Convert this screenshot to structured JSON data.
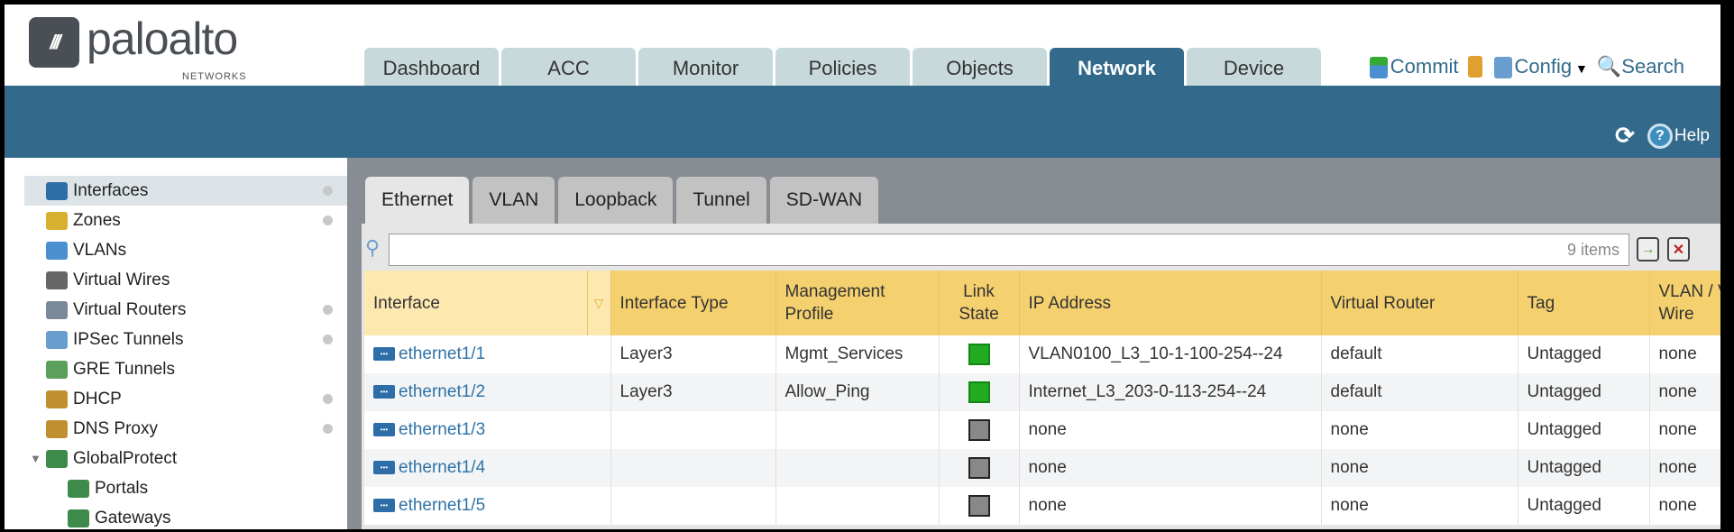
{
  "brand": {
    "logo_text": "paloalto",
    "logo_sub": "NETWORKS"
  },
  "main_tabs": [
    {
      "label": "Dashboard"
    },
    {
      "label": "ACC"
    },
    {
      "label": "Monitor"
    },
    {
      "label": "Policies"
    },
    {
      "label": "Objects"
    },
    {
      "label": "Network",
      "active": true
    },
    {
      "label": "Device"
    }
  ],
  "toolbar": {
    "commit": "Commit",
    "config": "Config",
    "search": "Search",
    "help": "Help"
  },
  "sidebar": {
    "items": [
      {
        "label": "Interfaces",
        "dot": true,
        "selected": true
      },
      {
        "label": "Zones",
        "dot": true
      },
      {
        "label": "VLANs"
      },
      {
        "label": "Virtual Wires"
      },
      {
        "label": "Virtual Routers",
        "dot": true
      },
      {
        "label": "IPSec Tunnels",
        "dot": true
      },
      {
        "label": "GRE Tunnels"
      },
      {
        "label": "DHCP",
        "dot": true
      },
      {
        "label": "DNS Proxy",
        "dot": true
      },
      {
        "label": "GlobalProtect",
        "expanded": true
      },
      {
        "label": "Portals",
        "child": true
      },
      {
        "label": "Gateways",
        "child": true
      }
    ]
  },
  "sub_tabs": [
    {
      "label": "Ethernet",
      "active": true
    },
    {
      "label": "VLAN"
    },
    {
      "label": "Loopback"
    },
    {
      "label": "Tunnel"
    },
    {
      "label": "SD-WAN"
    }
  ],
  "search": {
    "value": "",
    "count": "9 items"
  },
  "table": {
    "columns": [
      "Interface",
      "Interface Type",
      "Management Profile",
      "Link State",
      "IP Address",
      "Virtual Router",
      "Tag",
      "VLAN / Virtual-Wire"
    ],
    "rows": [
      {
        "interface": "ethernet1/1",
        "type": "Layer3",
        "profile": "Mgmt_Services",
        "link": "up",
        "ip": "VLAN0100_L3_10-1-100-254--24",
        "vr": "default",
        "tag": "Untagged",
        "vlan": "none"
      },
      {
        "interface": "ethernet1/2",
        "type": "Layer3",
        "profile": "Allow_Ping",
        "link": "up",
        "ip": "Internet_L3_203-0-113-254--24",
        "vr": "default",
        "tag": "Untagged",
        "vlan": "none"
      },
      {
        "interface": "ethernet1/3",
        "type": "",
        "profile": "",
        "link": "down",
        "ip": "none",
        "vr": "none",
        "tag": "Untagged",
        "vlan": "none"
      },
      {
        "interface": "ethernet1/4",
        "type": "",
        "profile": "",
        "link": "down",
        "ip": "none",
        "vr": "none",
        "tag": "Untagged",
        "vlan": "none"
      },
      {
        "interface": "ethernet1/5",
        "type": "",
        "profile": "",
        "link": "down",
        "ip": "none",
        "vr": "none",
        "tag": "Untagged",
        "vlan": "none"
      }
    ]
  },
  "colors": {
    "header_blue": "#336a8b",
    "header_row": "#f5d06e",
    "link_up": "#22aa22",
    "link_down": "#888888"
  }
}
